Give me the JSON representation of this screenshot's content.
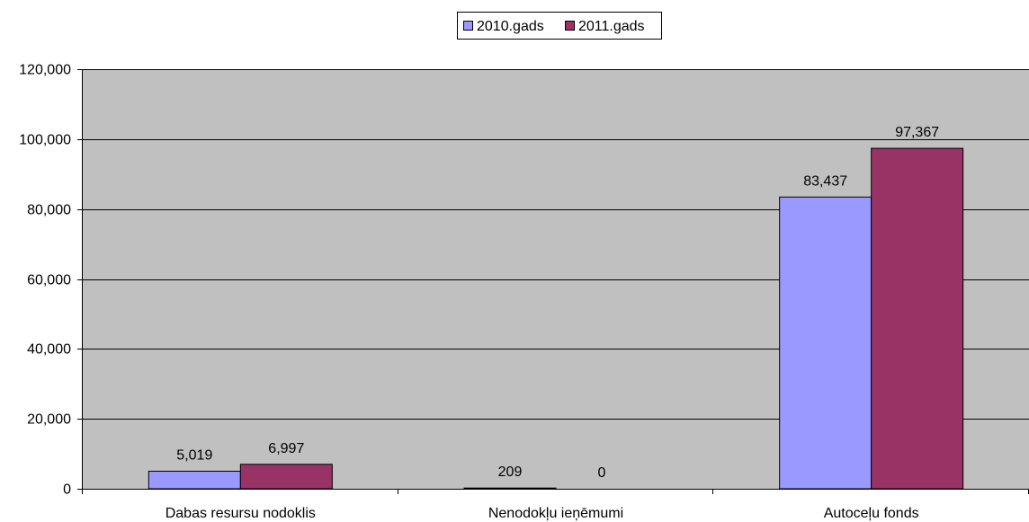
{
  "chart_data": {
    "type": "bar",
    "title": "",
    "xlabel": "",
    "ylabel": "",
    "categories": [
      "Dabas resursu nodoklis",
      "Nenodokļu ieņēmumi",
      "Autoceļu fonds"
    ],
    "series": [
      {
        "name": "2010.gads",
        "color": "#9999ff",
        "values": [
          5019,
          209,
          83437
        ],
        "labels": [
          "5,019",
          "209",
          "83,437"
        ]
      },
      {
        "name": "2011.gads",
        "color": "#993366",
        "values": [
          6997,
          0,
          97367
        ],
        "labels": [
          "6,997",
          "0",
          "97,367"
        ]
      }
    ],
    "ylim": [
      0,
      120000
    ],
    "yticks": [
      0,
      20000,
      40000,
      60000,
      80000,
      100000,
      120000
    ],
    "ytick_labels": [
      "0",
      "20,000",
      "40,000",
      "60,000",
      "80,000",
      "100,000",
      "120,000"
    ],
    "grid": true,
    "legend_position": "top-center",
    "plot_background": "#c0c0c0"
  }
}
